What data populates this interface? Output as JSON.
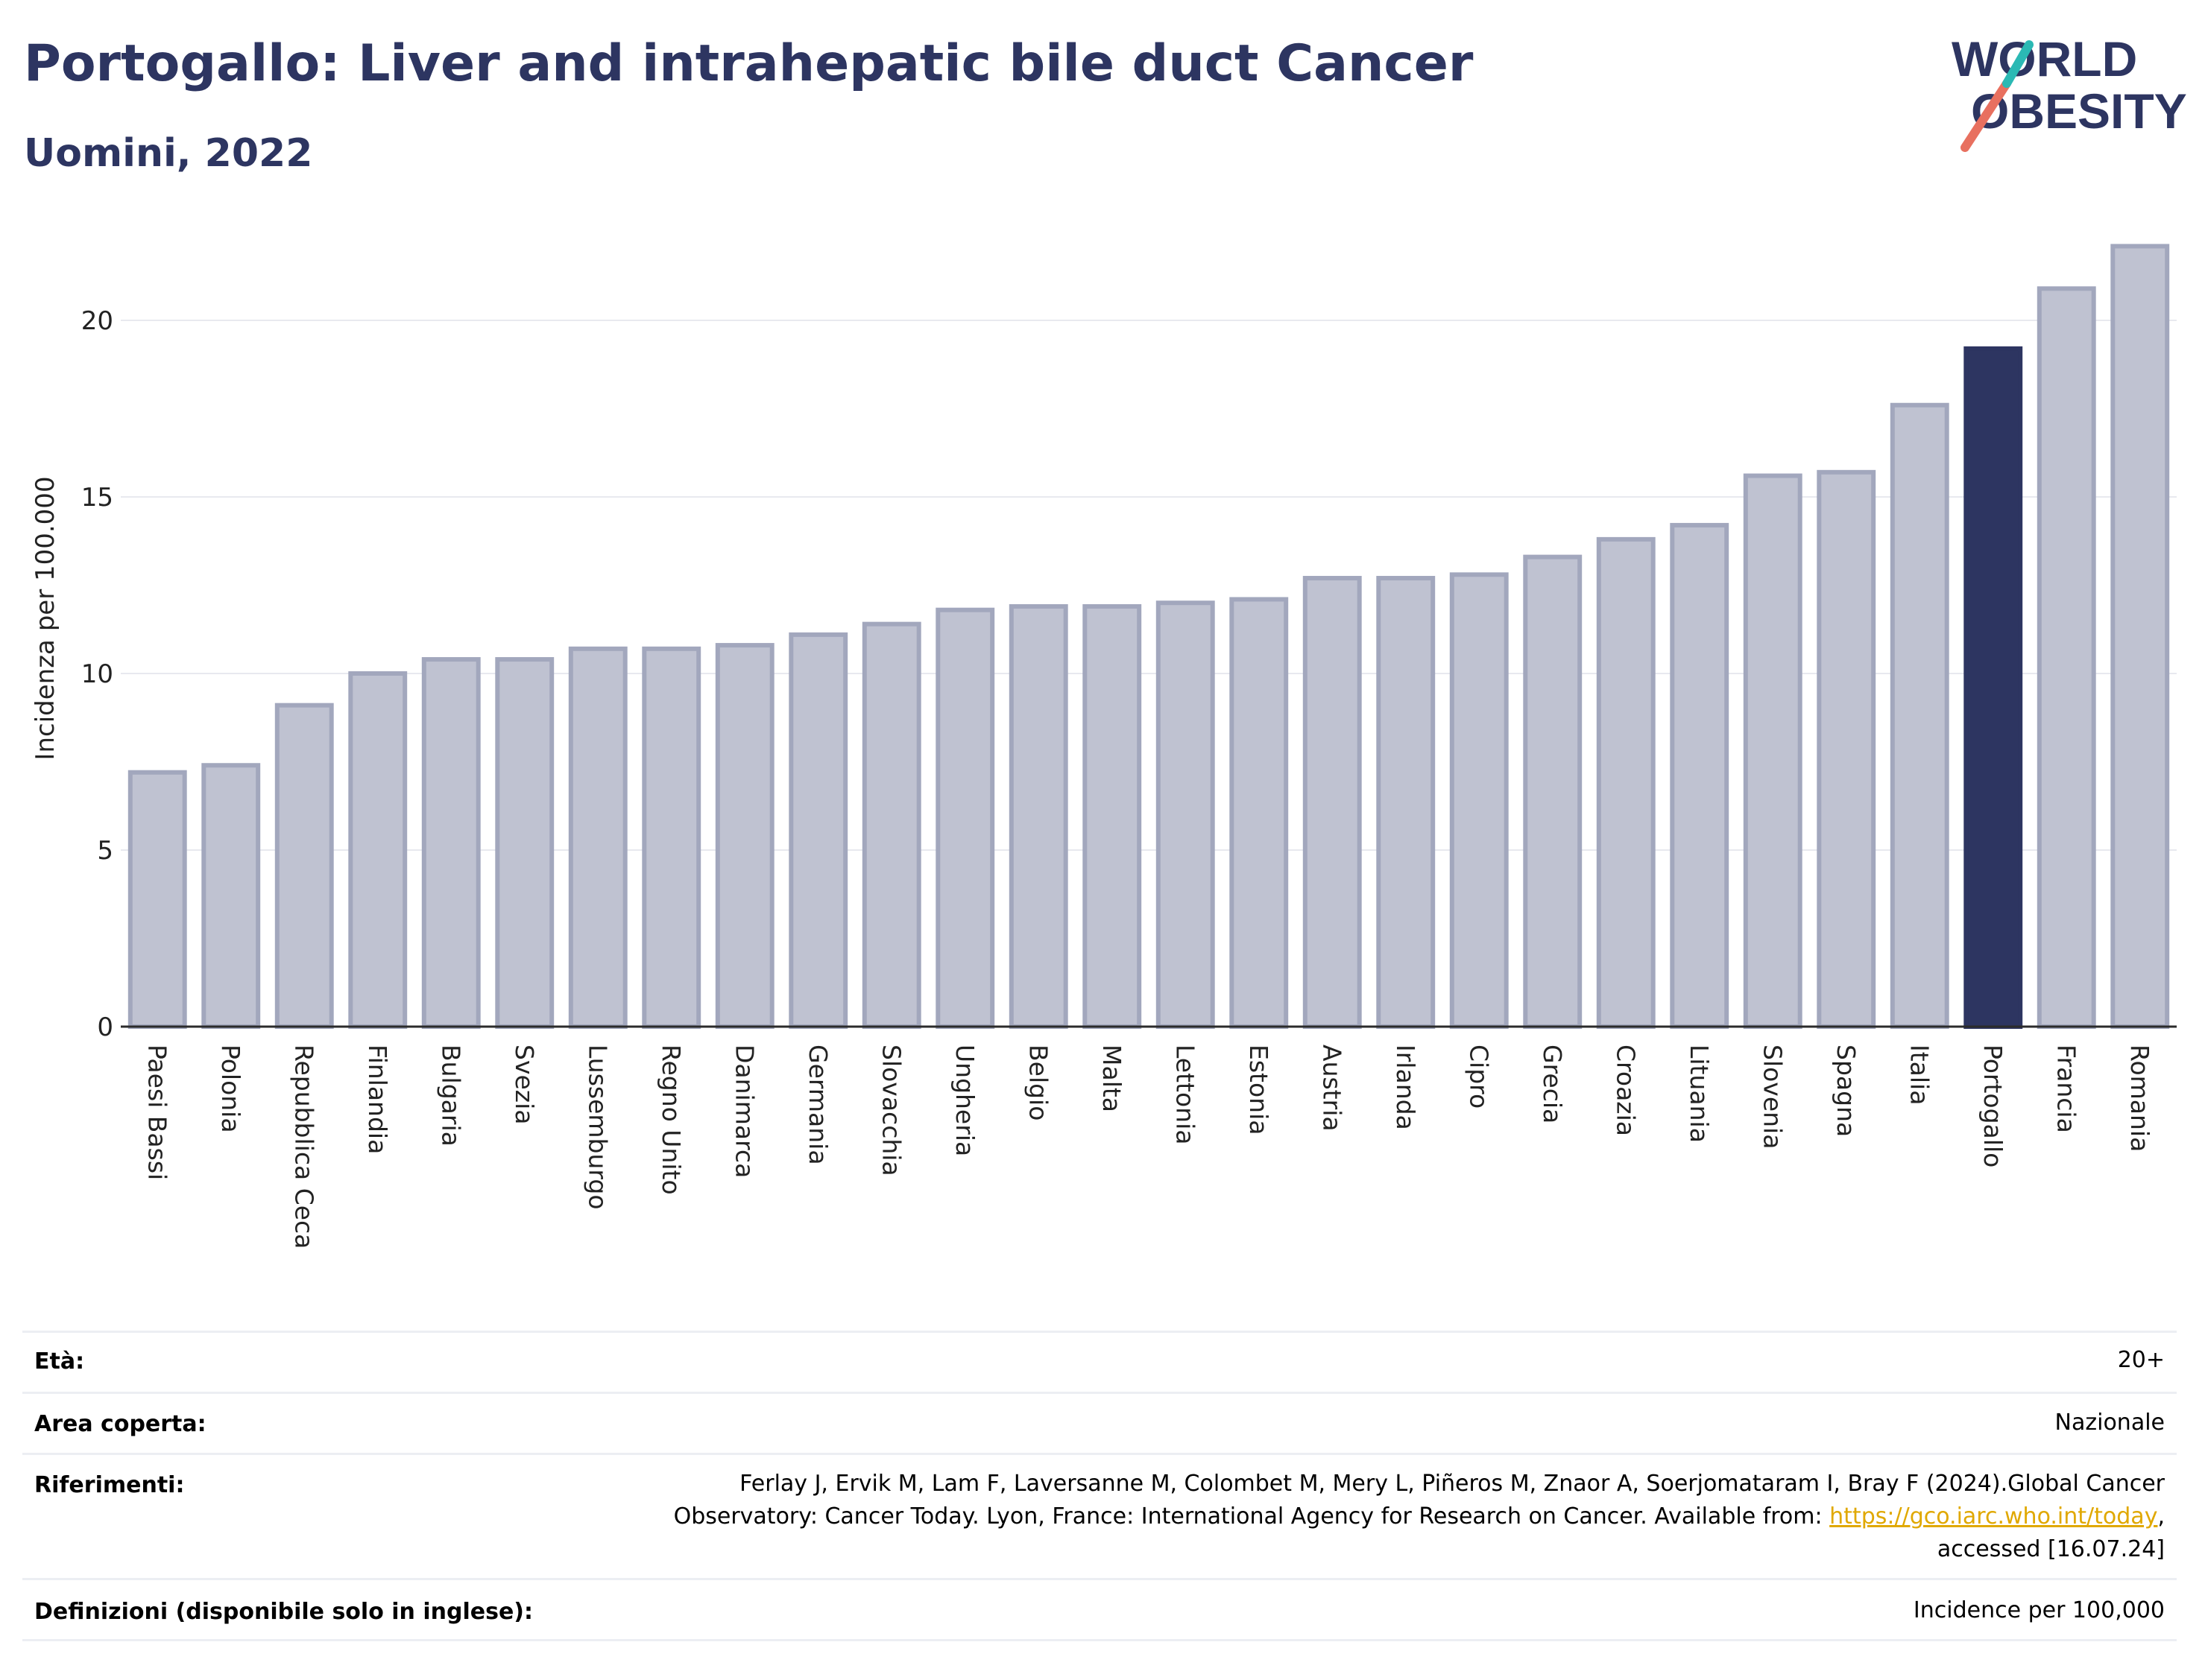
{
  "header": {
    "title": "Portogallo: Liver and intrahepatic bile duct Cancer",
    "subtitle": "Uomini, 2022"
  },
  "logo": {
    "line1": "WORLD",
    "line2": "OBESITY",
    "colors": {
      "text": "#2d3561",
      "slash_red": "#e8705f",
      "slash_teal": "#2bb9b4"
    }
  },
  "colors": {
    "bar_default": "#bfc2d1",
    "bar_outline": "#a2a7bd",
    "bar_highlight": "#2d3561",
    "grid": "#e8e9ef"
  },
  "chart_data": {
    "type": "bar",
    "ylabel": "Incidenza per 100.000",
    "xlabel": "",
    "ylim": [
      0,
      22.5
    ],
    "yticks": [
      0,
      5,
      10,
      15,
      20
    ],
    "grid": true,
    "highlight": "Portogallo",
    "categories": [
      "Paesi Bassi",
      "Polonia",
      "Repubblica Ceca",
      "Finlandia",
      "Bulgaria",
      "Svezia",
      "Lussemburgo",
      "Regno Unito",
      "Danimarca",
      "Germania",
      "Slovacchia",
      "Ungheria",
      "Belgio",
      "Malta",
      "Lettonia",
      "Estonia",
      "Austria",
      "Irlanda",
      "Cipro",
      "Grecia",
      "Croazia",
      "Lituania",
      "Slovenia",
      "Spagna",
      "Italia",
      "Portogallo",
      "Francia",
      "Romania"
    ],
    "values": [
      7.2,
      7.4,
      9.1,
      10.0,
      10.4,
      10.4,
      10.7,
      10.7,
      10.8,
      11.1,
      11.4,
      11.8,
      11.9,
      11.9,
      12.0,
      12.1,
      12.7,
      12.7,
      12.8,
      13.3,
      13.8,
      14.2,
      15.6,
      15.7,
      17.6,
      19.2,
      20.9,
      22.1
    ]
  },
  "info": [
    {
      "label": "Età:",
      "value": "20+"
    },
    {
      "label": "Area coperta:",
      "value": "Nazionale"
    },
    {
      "label": "Riferimenti:",
      "value_lines": [
        "Ferlay J, Ervik M, Lam F, Laversanne M, Colombet M, Mery L, Piñeros M, Znaor A, Soerjomataram I, Bray F (2024).Global Cancer",
        "Observatory: Cancer Today. Lyon, France: International Agency for Research on Cancer. Available from: ",
        "https://gco.iarc.who.int/today",
        ",",
        "accessed [16.07.24]"
      ]
    },
    {
      "label": "Definizioni (disponibile solo in inglese):",
      "value": "Incidence per 100,000"
    }
  ]
}
